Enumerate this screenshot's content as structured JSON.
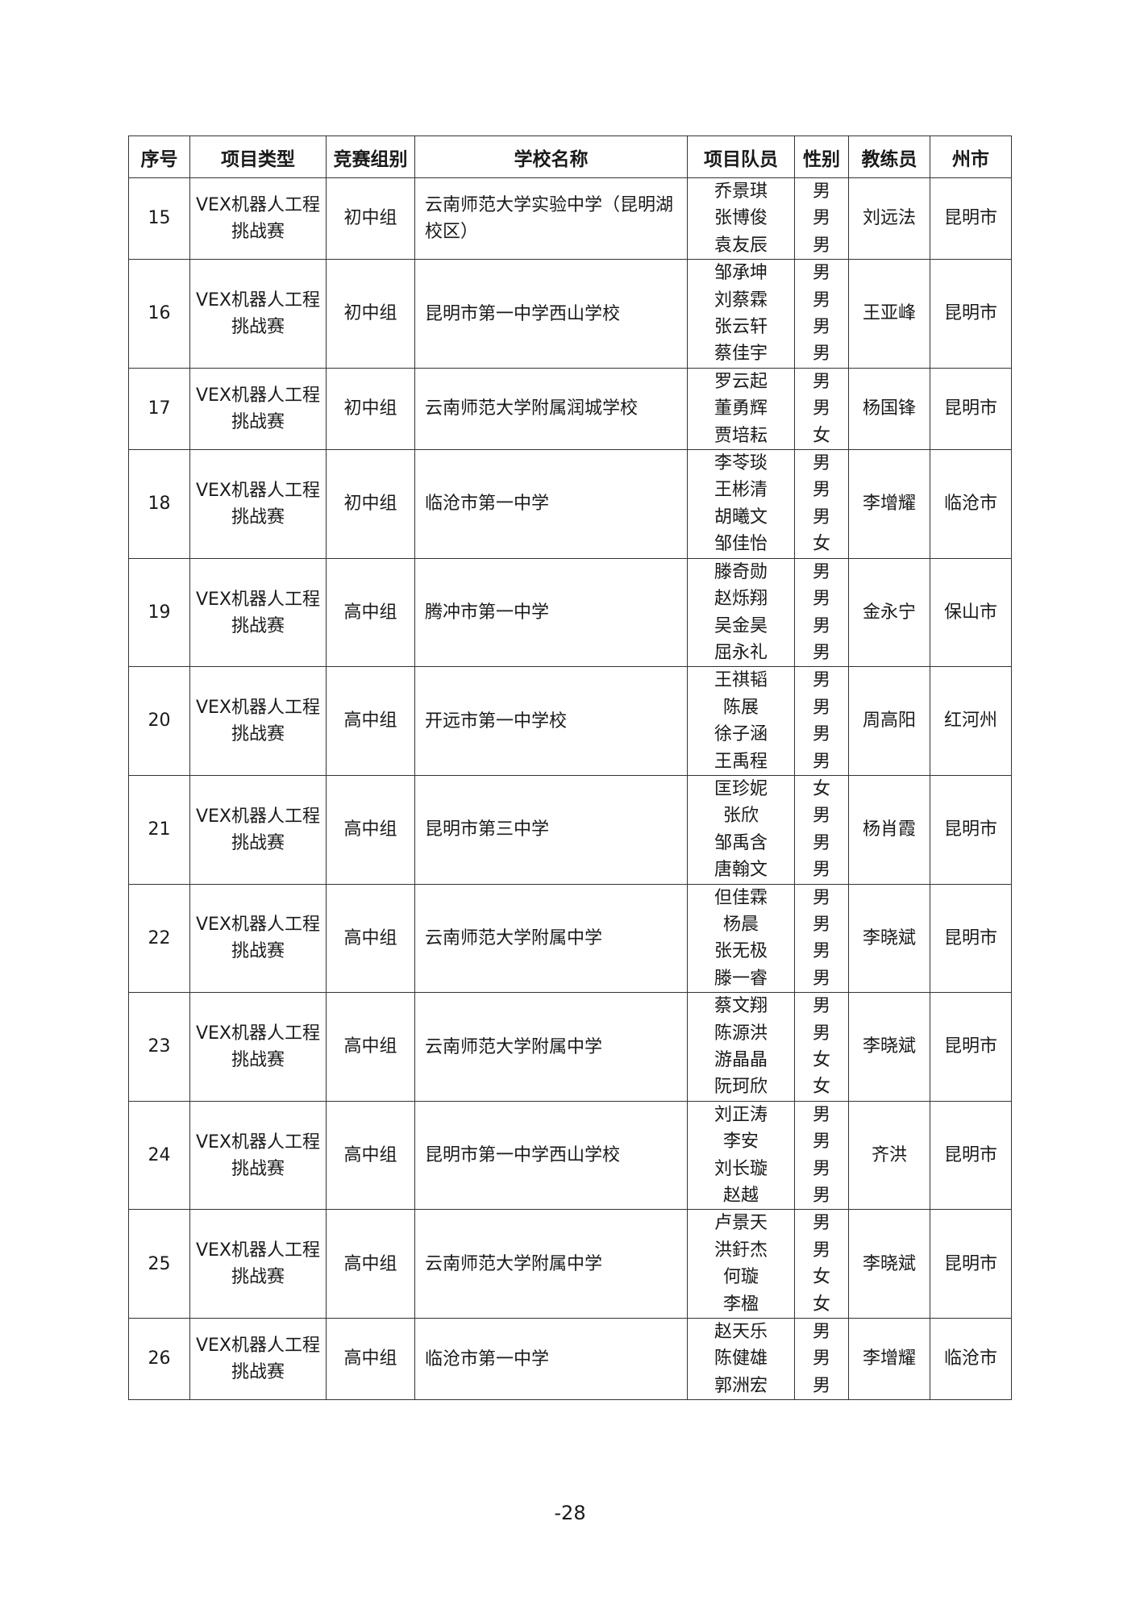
{
  "headers": [
    "序号",
    "项目类型",
    "竞赛组别",
    "学校名称",
    "项目队员",
    "性别",
    "教练员",
    "州市"
  ],
  "rows": [
    {
      "no": "15",
      "type": "VEX机器人工程挑战赛",
      "group": "初中组",
      "school": "云南师范大学实验中学（昆明湖校区）",
      "members": [
        "乔景琪",
        "张博俊",
        "袁友辰"
      ],
      "genders": [
        "男",
        "男",
        "男"
      ],
      "coach": "刘远法",
      "city": "昆明市"
    },
    {
      "no": "16",
      "type": "VEX机器人工程挑战赛",
      "group": "初中组",
      "school": "昆明市第一中学西山学校",
      "members": [
        "邹承坤",
        "刘蔡霖",
        "张云轩",
        "蔡佳宇"
      ],
      "genders": [
        "男",
        "男",
        "男",
        "男"
      ],
      "coach": "王亚峰",
      "city": "昆明市"
    },
    {
      "no": "17",
      "type": "VEX机器人工程挑战赛",
      "group": "初中组",
      "school": "云南师范大学附属润城学校",
      "members": [
        "罗云起",
        "董勇辉",
        "贾培耘"
      ],
      "genders": [
        "男",
        "男",
        "女"
      ],
      "coach": "杨国锋",
      "city": "昆明市"
    },
    {
      "no": "18",
      "type": "VEX机器人工程挑战赛",
      "group": "初中组",
      "school": "临沧市第一中学",
      "members": [
        "李苓琰",
        "王彬清",
        "胡曦文",
        "邹佳怡"
      ],
      "genders": [
        "男",
        "男",
        "男",
        "女"
      ],
      "coach": "李增耀",
      "city": "临沧市"
    },
    {
      "no": "19",
      "type": "VEX机器人工程挑战赛",
      "group": "高中组",
      "school": "腾冲市第一中学",
      "members": [
        "滕奇勋",
        "赵烁翔",
        "吴金昊",
        "屈永礼"
      ],
      "genders": [
        "男",
        "男",
        "男",
        "男"
      ],
      "coach": "金永宁",
      "city": "保山市"
    },
    {
      "no": "20",
      "type": "VEX机器人工程挑战赛",
      "group": "高中组",
      "school": "开远市第一中学校",
      "members": [
        "王祺韬",
        "陈展",
        "徐子涵",
        "王禹程"
      ],
      "genders": [
        "男",
        "男",
        "男",
        "男"
      ],
      "coach": "周高阳",
      "city": "红河州"
    },
    {
      "no": "21",
      "type": "VEX机器人工程挑战赛",
      "group": "高中组",
      "school": "昆明市第三中学",
      "members": [
        "匡珍妮",
        "张欣",
        "邹禹含",
        "唐翰文"
      ],
      "genders": [
        "女",
        "男",
        "男",
        "男"
      ],
      "coach": "杨肖霞",
      "city": "昆明市"
    },
    {
      "no": "22",
      "type": "VEX机器人工程挑战赛",
      "group": "高中组",
      "school": "云南师范大学附属中学",
      "members": [
        "但佳霖",
        "杨晨",
        "张无极",
        "滕一睿"
      ],
      "genders": [
        "男",
        "男",
        "男",
        "男"
      ],
      "coach": "李晓斌",
      "city": "昆明市"
    },
    {
      "no": "23",
      "type": "VEX机器人工程挑战赛",
      "group": "高中组",
      "school": "云南师范大学附属中学",
      "members": [
        "蔡文翔",
        "陈源洪",
        "游晶晶",
        "阮珂欣"
      ],
      "genders": [
        "男",
        "男",
        "女",
        "女"
      ],
      "coach": "李晓斌",
      "city": "昆明市"
    },
    {
      "no": "24",
      "type": "VEX机器人工程挑战赛",
      "group": "高中组",
      "school": "昆明市第一中学西山学校",
      "members": [
        "刘正涛",
        "李安",
        "刘长璇",
        "赵越"
      ],
      "genders": [
        "男",
        "男",
        "男",
        "男"
      ],
      "coach": "齐洪",
      "city": "昆明市"
    },
    {
      "no": "25",
      "type": "VEX机器人工程挑战赛",
      "group": "高中组",
      "school": "云南师范大学附属中学",
      "members": [
        "卢景天",
        "洪釪杰",
        "何璇",
        "李楹"
      ],
      "genders": [
        "男",
        "男",
        "女",
        "女"
      ],
      "coach": "李晓斌",
      "city": "昆明市"
    },
    {
      "no": "26",
      "type": "VEX机器人工程挑战赛",
      "group": "高中组",
      "school": "临沧市第一中学",
      "members": [
        "赵天乐",
        "陈健雄",
        "郭洲宏"
      ],
      "genders": [
        "男",
        "男",
        "男"
      ],
      "coach": "李增耀",
      "city": "临沧市"
    }
  ],
  "page_number": "-28"
}
